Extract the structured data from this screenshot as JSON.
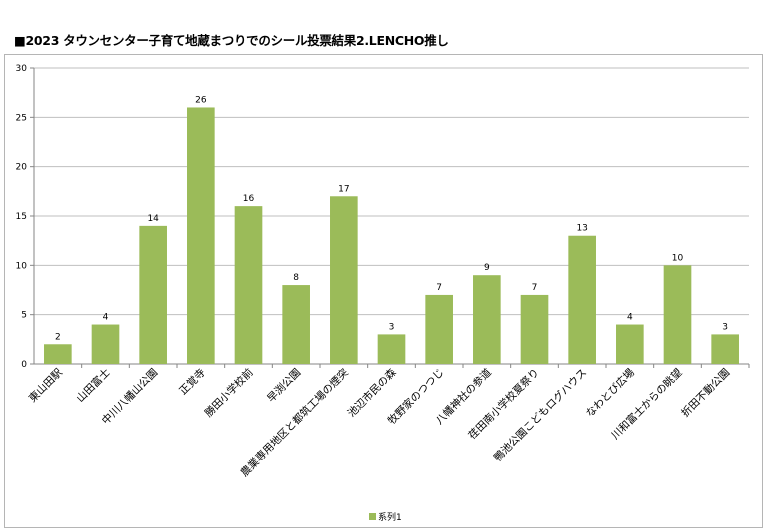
{
  "title": "■2023 タウンセンター子育て地蔵まつりでのシール投票結果2.LENCHO推し",
  "colors": {
    "bar": "#9BBB59",
    "grid": "#BFBFBF",
    "axis": "#868686"
  },
  "chart_data": {
    "type": "bar",
    "title": "■2023 タウンセンター子育て地蔵まつりでのシール投票結果2.LENCHO推し",
    "categories": [
      "東山田駅",
      "山田富士",
      "中川八幡山公園",
      "正覚寺",
      "勝田小学校前",
      "早渕公園",
      "農業専用地区と都筑工場の煙突",
      "池辺市民の森",
      "牧野家のつつじ",
      "八幡神社の参道",
      "荏田南小学校夏祭り",
      "鴨池公園こどもログハウス",
      "なわとび広場",
      "川和富士からの眺望",
      "折田不動公園"
    ],
    "series": [
      {
        "name": "系列1",
        "values": [
          2,
          4,
          14,
          26,
          16,
          8,
          17,
          3,
          7,
          9,
          7,
          13,
          4,
          10,
          3
        ]
      }
    ],
    "ylim": [
      0,
      30
    ],
    "yticks": [
      0,
      5,
      10,
      15,
      20,
      25,
      30
    ],
    "grid": true,
    "legend": "bottom"
  }
}
